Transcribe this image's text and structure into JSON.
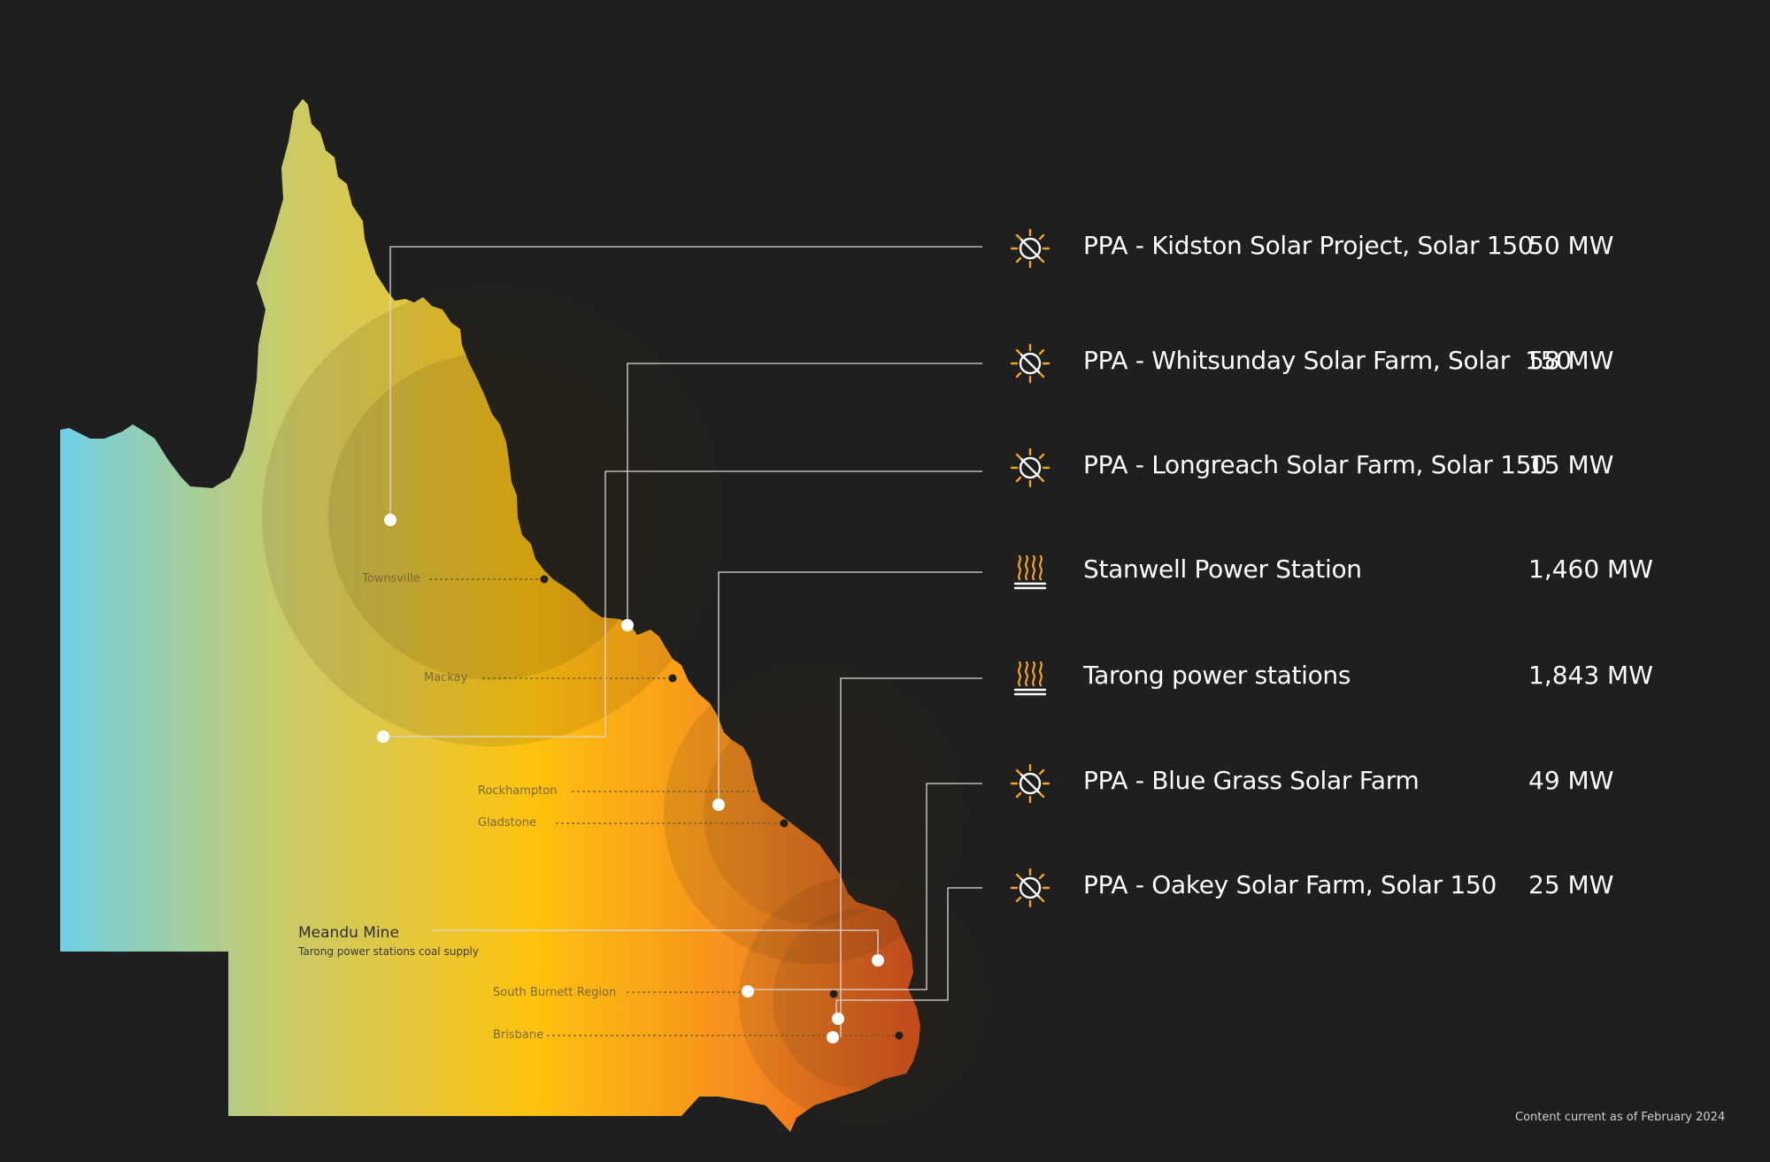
{
  "colors": {
    "background": "#1f1f1f",
    "gradient": [
      "#6fd0e6",
      "#c7cb6c",
      "#ffc20e",
      "#f68b1f",
      "#e4551f"
    ],
    "solar_icon": "#f6a31d",
    "thermal_icon": "#f6a31d",
    "leader_line": "#d9d9d9"
  },
  "map": {
    "cities": [
      {
        "name": "Townsville"
      },
      {
        "name": "Mackay"
      },
      {
        "name": "Rockhampton"
      },
      {
        "name": "Gladstone"
      },
      {
        "name": "South Burnett Region"
      },
      {
        "name": "Brisbane"
      }
    ],
    "mine": {
      "title": "Meandu Mine",
      "subtitle": "Tarong power stations coal supply"
    }
  },
  "legend": [
    {
      "icon": "solar-icon",
      "label": "PPA - Kidston Solar Project, Solar 150",
      "value": "50 MW"
    },
    {
      "icon": "solar-icon",
      "label": "PPA - Whitsunday Solar Farm, Solar  150",
      "value": "58 MW"
    },
    {
      "icon": "solar-icon",
      "label": "PPA - Longreach Solar Farm, Solar 150",
      "value": "15 MW"
    },
    {
      "icon": "thermal-icon",
      "label": "Stanwell Power Station",
      "value": "1,460 MW"
    },
    {
      "icon": "thermal-icon",
      "label": "Tarong power stations",
      "value": "1,843 MW"
    },
    {
      "icon": "solar-icon",
      "label": "PPA - Blue Grass Solar Farm",
      "value": "49 MW"
    },
    {
      "icon": "solar-icon",
      "label": "PPA - Oakey Solar Farm, Solar 150",
      "value": "25 MW"
    }
  ],
  "footnote": "Content current as of February 2024"
}
